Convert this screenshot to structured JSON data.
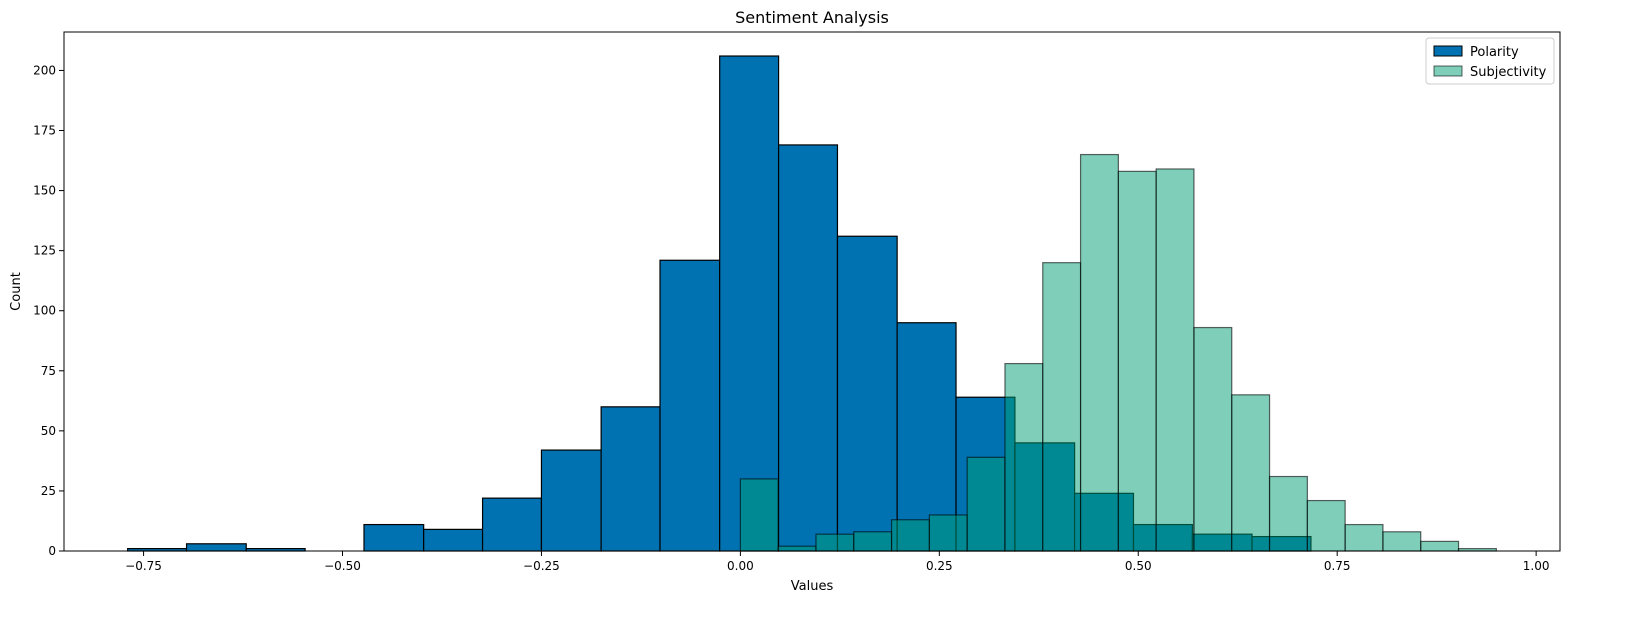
{
  "chart_data": {
    "type": "histogram",
    "title": "Sentiment Analysis",
    "xlabel": "Values",
    "ylabel": "Count",
    "xlim": [
      -0.85,
      1.03
    ],
    "ylim": [
      0,
      216
    ],
    "xticks": [
      -0.75,
      -0.5,
      -0.25,
      0.0,
      0.25,
      0.5,
      0.75,
      1.0
    ],
    "xtick_labels": [
      "−0.75",
      "−0.50",
      "−0.25",
      "0.00",
      "0.25",
      "0.50",
      "0.75",
      "1.00"
    ],
    "yticks": [
      0,
      25,
      50,
      75,
      100,
      125,
      150,
      175,
      200
    ],
    "ytick_labels": [
      "0",
      "25",
      "50",
      "75",
      "100",
      "125",
      "150",
      "175",
      "200"
    ],
    "legend_position": "top-right",
    "series": [
      {
        "name": "Polarity",
        "color": "#0072b2",
        "edge_color": "#000000",
        "opacity": 1.0,
        "bin_edges": [
          -0.77,
          -0.696,
          -0.621,
          -0.547,
          -0.473,
          -0.398,
          -0.324,
          -0.25,
          -0.175,
          -0.101,
          -0.026,
          0.048,
          0.122,
          0.197,
          0.271,
          0.345,
          0.42,
          0.494,
          0.568,
          0.643,
          0.717
        ],
        "counts": [
          1,
          3,
          1,
          0,
          11,
          9,
          22,
          42,
          60,
          121,
          206,
          169,
          131,
          95,
          64,
          45,
          24,
          11,
          7,
          6
        ]
      },
      {
        "name": "Subjectivity",
        "color": "#009e73",
        "edge_color": "#000000",
        "opacity": 0.5,
        "bin_edges": [
          0.0,
          0.0475,
          0.095,
          0.1425,
          0.19,
          0.2375,
          0.285,
          0.3325,
          0.38,
          0.4275,
          0.475,
          0.5225,
          0.57,
          0.6175,
          0.665,
          0.7125,
          0.76,
          0.8075,
          0.855,
          0.9025,
          0.95
        ],
        "counts": [
          30,
          2,
          7,
          8,
          13,
          15,
          39,
          78,
          120,
          165,
          158,
          159,
          93,
          65,
          31,
          21,
          11,
          8,
          4,
          1
        ]
      }
    ]
  }
}
